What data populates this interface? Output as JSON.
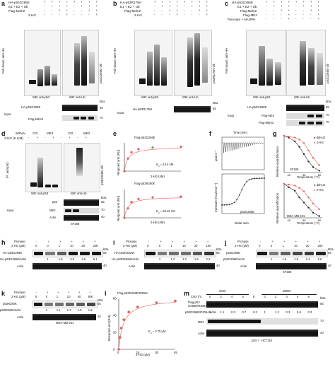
{
  "a": {
    "letter": "a",
    "rows": [
      "HA-p53G266E",
      "E1 + E2 + Ub",
      "Flag-Mdm2",
      "2-HG"
    ],
    "lanes": [
      [
        "+",
        "+",
        "+",
        "+",
        "+",
        "+",
        "+",
        "+"
      ],
      [
        "-",
        "+",
        "+",
        "+",
        "-",
        "+",
        "+",
        "+"
      ],
      [
        "-",
        "-",
        "+",
        "+",
        "-",
        "-",
        "+",
        "+"
      ],
      [
        "-",
        "-",
        "-",
        "+",
        "-",
        "-",
        "-",
        "+"
      ]
    ],
    "left_label": "Pull down: anti-HA",
    "side": "p53G266E-Ub",
    "wb1": "WB: anti-p53",
    "wb2": "WB: anti-Ub",
    "input": "Input",
    "input_rows": [
      "HA-p53G266E",
      "Flag-Mdm2"
    ],
    "kda": "kDa",
    "mw": [
      "55",
      "70"
    ]
  },
  "b": {
    "letter": "b",
    "rows": [
      "HA-p53R175H",
      "E1 + E2 + Ub",
      "Flag-Mdm2",
      "2-HG"
    ],
    "lanes": [
      [
        "+",
        "+",
        "+",
        "+",
        "+",
        "+",
        "+",
        "+"
      ],
      [
        "-",
        "+",
        "+",
        "+",
        "-",
        "+",
        "+",
        "+"
      ],
      [
        "-",
        "-",
        "+",
        "+",
        "-",
        "-",
        "+",
        "+"
      ],
      [
        "-",
        "-",
        "-",
        "+",
        "-",
        "-",
        "-",
        "+"
      ]
    ],
    "left_label": "Pull down: anti-HA",
    "side": "p53R175H-Ub",
    "wb1": "WB: anti-p53",
    "wb2": "WB: anti-Ub",
    "input": "Input",
    "input_rows": [
      "HA-p53R175H"
    ],
    "kda": "kDa",
    "mw": [
      "55"
    ]
  },
  "c": {
    "letter": "c",
    "rows": [
      "HA-p53G266E",
      "E1 + E2 + Ub",
      "Flag-Mdm2",
      "Flag-ME2",
      "Pyruvate + NADPH"
    ],
    "lanes": [
      [
        "+",
        "+",
        "+",
        "+",
        "+",
        "+",
        "+",
        "+"
      ],
      [
        "-",
        "+",
        "+",
        "+",
        "-",
        "+",
        "+",
        "+"
      ],
      [
        "-",
        "-",
        "+",
        "+",
        "-",
        "-",
        "+",
        "+"
      ],
      [
        "-",
        "-",
        "-",
        "+",
        "-",
        "-",
        "-",
        "+"
      ],
      [
        "-",
        "-",
        "-",
        "+",
        "-",
        "-",
        "-",
        "+"
      ]
    ],
    "left_label": "Pull down: anti-HA",
    "side": "p53G266E-Ub",
    "wb1": "WB: anti-p53",
    "wb2": "WB: anti-Ub",
    "input": "Input",
    "input_rows": [
      "HA-p53G266E",
      "Flag-ME2",
      "Flag-Mdm2"
    ],
    "kda": "kDa",
    "mw": [
      "55",
      "70",
      "70"
    ]
  },
  "d": {
    "letter": "d",
    "sirna": "siRNA-",
    "ctrl": "Ctrl",
    "me2": "ME2",
    "hg": "2-HG (5 mM)",
    "lanes": [
      "-",
      "+",
      "-",
      "+",
      "-",
      "+",
      "-",
      "+"
    ],
    "left_label": "IP: anti-p53",
    "side": "p53G266E-Ub",
    "wb1": "WB: anti-p53",
    "wb2": "WB: anti-Ub",
    "input": "Input",
    "input_rows": [
      "p53",
      "ME2",
      "Actin"
    ],
    "kda": "kDa",
    "mw": [
      "55",
      "70",
      "40"
    ],
    "cell": "SF188"
  },
  "e": {
    "letter": "e",
    "plot1_title": "Flag-p53G266E",
    "plot2_title": "Flag-p53R280K",
    "ylabel": "Respond unit (RU)",
    "xlabel": "2-HG (nM)",
    "kd1": "K",
    "kd1_sub": "d",
    "kd1_val": " = 43.4 nM",
    "kd2_val": " = 50.15 nM"
  },
  "f": {
    "letter": "f",
    "time_label": "Time (min)",
    "ylabel_top": "μcal s⁻¹",
    "ylabel_bot": "Injectant (Kcal mol⁻¹)",
    "xlabel": "Molar ratio",
    "label": "p53G266E"
  },
  "g": {
    "letter": "g",
    "legend1": "ddH₂O",
    "legend2": "2-HG",
    "cell1": "SF188",
    "cell2": "MDA-MB-231",
    "ylabel": "Relative quantification",
    "xlabel": "Temperature (°C)"
  },
  "h": {
    "letter": "h",
    "pronase": "Pronase",
    "hg": "2-HG (μM)",
    "pron_lanes": [
      "-",
      "+",
      "+",
      "+",
      "+",
      "+"
    ],
    "hg_lanes": [
      "0",
      "0",
      "1",
      "10",
      "20",
      "200"
    ],
    "band1": "HA-p53G266E",
    "ratio_label": "HA-p53G266E/actin",
    "ratios": [
      "1",
      "1.5",
      "3.0",
      "3.5",
      "5.1"
    ],
    "actin": "Actin",
    "kda": "kDa",
    "mw": [
      "55",
      "40"
    ]
  },
  "i": {
    "letter": "i",
    "pronase": "Pronase",
    "hg": "2-HG (μM)",
    "pron_lanes": [
      "-",
      "+",
      "+",
      "+",
      "+",
      "+"
    ],
    "hg_lanes": [
      "0",
      "0",
      "1",
      "10",
      "20",
      "100"
    ],
    "band1": "HA-p53R282W",
    "ratio_label": "HA-p53R282W/actin",
    "ratios": [
      "1",
      "1.2",
      "1.2",
      "1.6",
      "2.2"
    ],
    "actin": "Actin",
    "kda": "kDa",
    "mw": [
      "55",
      "40"
    ]
  },
  "j": {
    "letter": "j",
    "pronase": "Pronase",
    "hg": "2-HG (μM)",
    "pron_lanes": [
      "-",
      "+",
      "+",
      "+",
      "+",
      "+"
    ],
    "hg_lanes": [
      "0",
      "0",
      "1",
      "10",
      "20",
      "200"
    ],
    "band1": "p53G266E",
    "ratio_label": "p53G266E/actin",
    "ratios": [
      "1",
      "1.5",
      "1.9",
      "2.1",
      "2.6"
    ],
    "actin": "Actin",
    "kda": "kDa",
    "mw": [
      "55",
      "40"
    ],
    "cell": "SF188"
  },
  "k": {
    "letter": "k",
    "pronase": "Pronase",
    "hg": "2-HG (μM)",
    "pron_lanes": [
      "-",
      "+",
      "+",
      "+",
      "+",
      "+"
    ],
    "hg_lanes": [
      "0",
      "0",
      "1",
      "10",
      "40",
      "800"
    ],
    "band1": "p53R280K",
    "ratio_label": "p53R280K/actin",
    "ratios": [
      "1",
      "1.1",
      "1.3",
      "1.5",
      "1.9"
    ],
    "actin": "Actin",
    "kda": "kDa",
    "mw": [
      "55",
      "40"
    ],
    "cell": "MDA-MB-231"
  },
  "l": {
    "letter": "l",
    "title": "Flag-p53G266E/R306A",
    "ylabel": "Respond unit (RU)",
    "xlabel": "2-HG (μM)",
    "kd_val": " = 3.79 μM",
    "xticks": [
      "0",
      "15",
      "30",
      "45"
    ],
    "yticks": [
      "0",
      "20",
      "40",
      "60"
    ]
  },
  "m": {
    "letter": "m",
    "chx": "CHX (h)",
    "sictrl": "siCtrl",
    "sime2": "siME2",
    "chx_lanes": [
      "0",
      "2",
      "4",
      "6",
      "8",
      "0",
      "2",
      "4",
      "6",
      "8"
    ],
    "flag": "Flag-p53",
    "band1": "G266E/R306A",
    "ratio_label": "p53G266E/R306A/actin",
    "ratios": [
      "1",
      "1.1",
      "0.3",
      "0.7",
      "0.2",
      "1",
      "1.2",
      "0.3",
      "0.6",
      "0.3"
    ],
    "me2": "ME2",
    "actin": "Actin",
    "kda": "kDa",
    "mw": [
      "55",
      "70",
      "40"
    ],
    "cell": "p53⁻/⁻ HCT116"
  },
  "chart_data": [
    {
      "type": "scatter",
      "title": "Flag-p53G266E",
      "ylabel": "Respond unit (RU)",
      "xlabel": "2-HG (nM)",
      "x": [
        0,
        25,
        50,
        100,
        200,
        400
      ],
      "y": [
        0,
        8,
        12,
        14,
        15,
        15.5
      ],
      "annotation": "Kd = 43.4 nM"
    },
    {
      "type": "scatter",
      "title": "Flag-p53R280K",
      "ylabel": "Respond unit (RU)",
      "xlabel": "2-HG (nM)",
      "x": [
        0,
        25,
        50,
        100,
        200,
        400
      ],
      "y": [
        0,
        6,
        10,
        12,
        13,
        13.5
      ],
      "annotation": "Kd = 50.15 nM"
    },
    {
      "type": "line",
      "title": "SF188",
      "series": [
        {
          "name": "ddH₂O",
          "x": [
            37,
            40,
            44,
            47,
            50,
            53,
            56,
            60
          ],
          "y": [
            1,
            0.95,
            0.85,
            0.7,
            0.5,
            0.3,
            0.15,
            0.05
          ]
        },
        {
          "name": "2-HG",
          "x": [
            37,
            40,
            44,
            47,
            50,
            53,
            56,
            60
          ],
          "y": [
            1,
            0.98,
            0.95,
            0.9,
            0.8,
            0.6,
            0.4,
            0.2
          ]
        }
      ],
      "xlabel": "Temperature (°C)",
      "ylabel": "Relative quantification",
      "xticks": [
        40,
        50,
        60
      ]
    },
    {
      "type": "line",
      "title": "MDA-MB-231",
      "series": [
        {
          "name": "ddH₂O",
          "x": [
            37,
            40,
            44,
            47,
            50,
            53,
            56,
            60
          ],
          "y": [
            1,
            0.9,
            0.8,
            0.6,
            0.45,
            0.3,
            0.15,
            0.05
          ]
        },
        {
          "name": "2-HG",
          "x": [
            37,
            40,
            44,
            47,
            50,
            53,
            56,
            60
          ],
          "y": [
            1,
            0.98,
            0.95,
            0.88,
            0.78,
            0.6,
            0.42,
            0.25
          ]
        }
      ],
      "xlabel": "Temperature (°C)",
      "ylabel": "Relative quantification",
      "xticks": [
        40,
        50,
        60
      ]
    },
    {
      "type": "scatter",
      "title": "Flag-p53G266E/R306A",
      "ylabel": "Respond unit (RU)",
      "xlabel": "2-HG (μM)",
      "x": [
        0,
        1,
        2,
        4,
        8,
        15,
        30,
        45
      ],
      "y": [
        0,
        14,
        25,
        35,
        44,
        50,
        55,
        57
      ],
      "annotation": "Kd = 3.79 μM",
      "xticks": [
        0,
        15,
        30,
        45
      ],
      "yticks": [
        0,
        20,
        40,
        60
      ]
    }
  ]
}
